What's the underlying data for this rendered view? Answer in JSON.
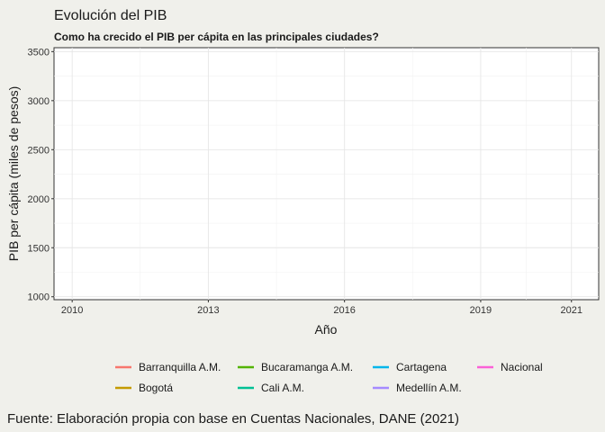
{
  "chart_data": {
    "type": "line",
    "title": "Evolución del PIB",
    "subtitle": "Como ha crecido el PIB per cápita en las principales ciudades?",
    "xlabel": "Año",
    "ylabel": "PIB per cápita (miles de pesos)",
    "xlim": [
      2009.6,
      2021.6
    ],
    "ylim": [
      970,
      3540
    ],
    "x_ticks": [
      2010,
      2013,
      2016,
      2019,
      2021
    ],
    "y_ticks": [
      1000,
      1500,
      2000,
      2500,
      3000,
      3500
    ],
    "grid": true,
    "legend_position": "bottom",
    "series": [
      {
        "name": "Barranquilla A.M.",
        "color": "#f8766d",
        "values": []
      },
      {
        "name": "Bogotá",
        "color": "#c49a00",
        "values": []
      },
      {
        "name": "Bucaramanga A.M.",
        "color": "#53b400",
        "values": []
      },
      {
        "name": "Cali A.M.",
        "color": "#00c094",
        "values": []
      },
      {
        "name": "Cartagena",
        "color": "#00b6eb",
        "values": []
      },
      {
        "name": "Medellín A.M.",
        "color": "#a58aff",
        "values": []
      },
      {
        "name": "Nacional",
        "color": "#fb61d7",
        "values": []
      }
    ]
  },
  "caption": "Fuente: Elaboración propia con base en Cuentas Nacionales, DANE (2021)"
}
